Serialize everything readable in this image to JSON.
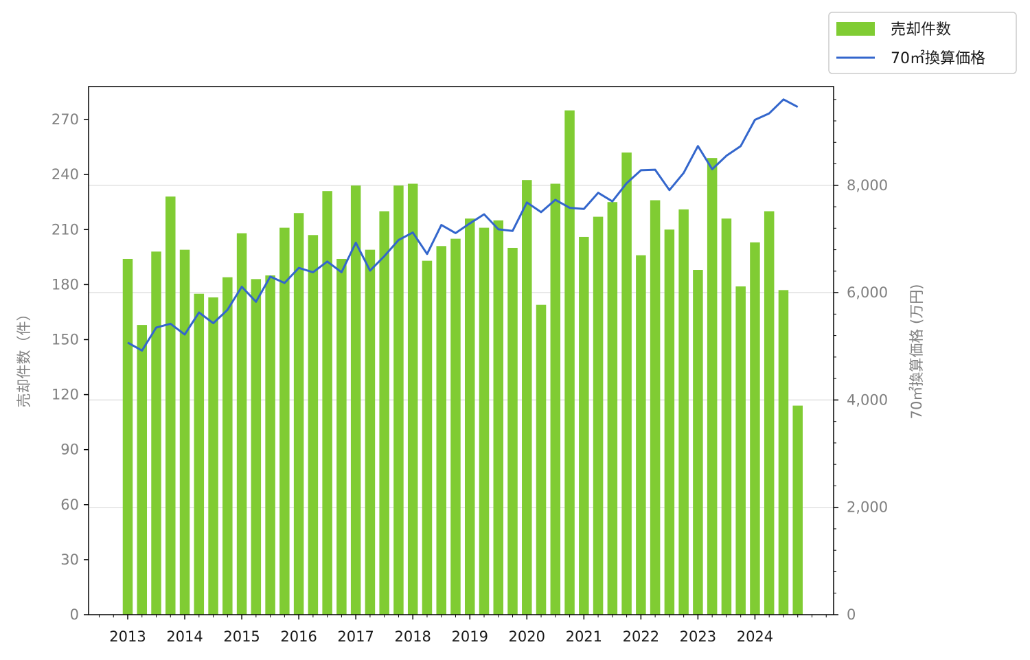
{
  "chart_data": {
    "type": "bar+line",
    "x_tick_labels": [
      "2013",
      "2014",
      "2015",
      "2016",
      "2017",
      "2018",
      "2019",
      "2020",
      "2021",
      "2022",
      "2023",
      "2024"
    ],
    "left_axis": {
      "label": "売却件数（件）",
      "ylim": [
        0,
        288
      ],
      "ticks": [
        "0",
        "30",
        "60",
        "90",
        "120",
        "150",
        "180",
        "210",
        "240",
        "270"
      ],
      "tick_values": [
        0,
        30,
        60,
        90,
        120,
        150,
        180,
        210,
        240,
        270
      ]
    },
    "right_axis": {
      "label": "70㎡換算価格 (万円)",
      "ylim": [
        0,
        9840
      ],
      "ticks": [
        "0",
        "2,000",
        "4,000",
        "6,000",
        "8,000"
      ],
      "tick_values": [
        0,
        2000,
        4000,
        6000,
        8000
      ]
    },
    "grid": "horizontal, right axis major ticks",
    "legend": {
      "placement": "top-right outside",
      "entries": [
        {
          "label": "売却件数",
          "color": "#80cc33",
          "kind": "bar"
        },
        {
          "label": "70㎡換算価格",
          "color": "#3366cc",
          "kind": "line"
        }
      ]
    },
    "series": [
      {
        "name": "売却件数",
        "axis": "left",
        "color": "#80cc33",
        "values": [
          194,
          158,
          198,
          228,
          199,
          175,
          173,
          184,
          208,
          183,
          185,
          211,
          219,
          207,
          231,
          194,
          234,
          199,
          220,
          234,
          235,
          193,
          201,
          205,
          216,
          211,
          215,
          200,
          237,
          169,
          235,
          275,
          206,
          217,
          225,
          252,
          196,
          226,
          210,
          221,
          188,
          249,
          216,
          179,
          203,
          220,
          177,
          114
        ]
      },
      {
        "name": "70㎡換算価格",
        "axis": "right",
        "color": "#3366cc",
        "values": [
          5070,
          4920,
          5350,
          5420,
          5220,
          5630,
          5430,
          5680,
          6110,
          5830,
          6300,
          6180,
          6460,
          6380,
          6580,
          6380,
          6930,
          6410,
          6680,
          6980,
          7120,
          6720,
          7260,
          7110,
          7290,
          7460,
          7180,
          7150,
          7680,
          7500,
          7730,
          7580,
          7560,
          7860,
          7700,
          8040,
          8280,
          8290,
          7910,
          8230,
          8730,
          8300,
          8550,
          8730,
          9220,
          9340,
          9600,
          9460
        ]
      }
    ]
  }
}
